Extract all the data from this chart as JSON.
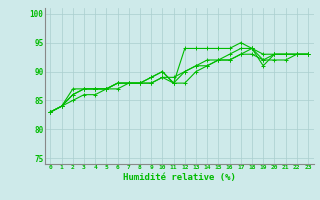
{
  "xlabel": "Humidité relative (%)",
  "xlim": [
    -0.5,
    23.5
  ],
  "ylim": [
    74,
    101
  ],
  "yticks": [
    75,
    80,
    85,
    90,
    95,
    100
  ],
  "xticks": [
    0,
    1,
    2,
    3,
    4,
    5,
    6,
    7,
    8,
    9,
    10,
    11,
    12,
    13,
    14,
    15,
    16,
    17,
    18,
    19,
    20,
    21,
    22,
    23
  ],
  "bg_color": "#ceeaea",
  "grid_color": "#aacece",
  "line_color": "#00bb00",
  "lines": [
    [
      83,
      84,
      86,
      87,
      87,
      87,
      88,
      88,
      88,
      88,
      89,
      88,
      94,
      94,
      94,
      94,
      94,
      95,
      94,
      91,
      93,
      93,
      93,
      93
    ],
    [
      83,
      84,
      87,
      87,
      87,
      87,
      88,
      88,
      88,
      89,
      90,
      88,
      90,
      91,
      92,
      92,
      93,
      94,
      94,
      93,
      93,
      93,
      93,
      93
    ],
    [
      83,
      84,
      86,
      87,
      87,
      87,
      88,
      88,
      88,
      89,
      90,
      88,
      88,
      90,
      91,
      92,
      92,
      93,
      94,
      92,
      93,
      93,
      93,
      93
    ],
    [
      83,
      84,
      85,
      86,
      86,
      87,
      87,
      88,
      88,
      88,
      89,
      89,
      90,
      91,
      91,
      92,
      92,
      93,
      93,
      92,
      92,
      92,
      93,
      93
    ]
  ]
}
